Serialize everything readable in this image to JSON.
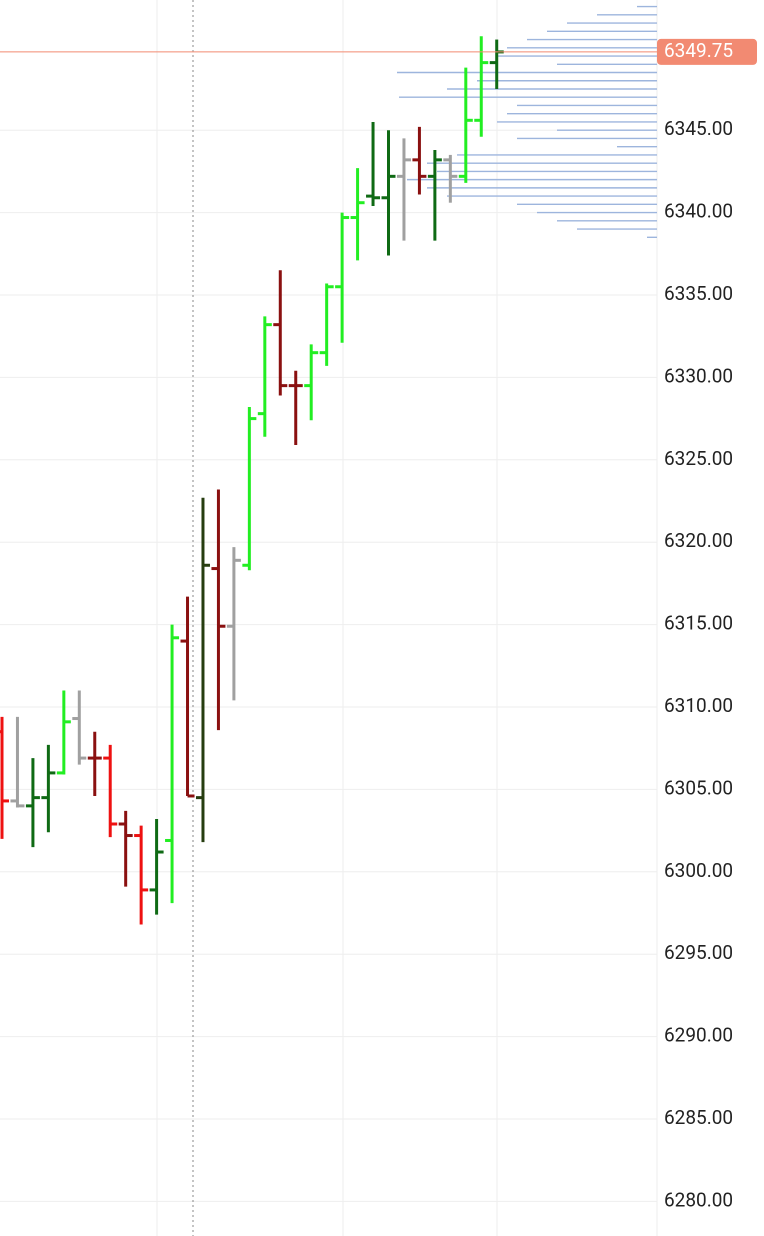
{
  "chart_data": {
    "type": "ohlc",
    "categories": [
      null,
      null,
      null,
      null,
      null,
      null,
      null,
      null,
      null,
      null,
      null,
      null,
      null,
      null,
      null,
      null,
      null,
      null,
      null,
      null,
      null,
      null,
      null,
      null,
      null,
      null,
      null,
      null,
      null,
      null,
      null,
      null,
      null
    ],
    "open": [
      6308.5,
      6304.3,
      6304.0,
      6304.5,
      6306.0,
      6309.3,
      6306.9,
      6306.9,
      6302.9,
      6302.2,
      6298.9,
      6301.9,
      6314.0,
      6304.5,
      6318.4,
      6314.9,
      6318.6,
      6327.8,
      6333.2,
      6329.5,
      6329.5,
      6331.5,
      6335.5,
      6339.7,
      6341.0,
      6340.9,
      6342.2,
      6343.2,
      6342.2,
      6343.2,
      6342.2,
      6345.6,
      6349.1
    ],
    "high": [
      6309.4,
      6309.4,
      6306.9,
      6307.7,
      6311.0,
      6311.0,
      6308.5,
      6307.7,
      6303.7,
      6302.8,
      6303.2,
      6315.0,
      6316.7,
      6322.7,
      6323.2,
      6319.7,
      6328.2,
      6333.7,
      6336.5,
      6330.4,
      6332.0,
      6335.7,
      6340.0,
      6342.7,
      6345.5,
      6345.0,
      6344.5,
      6345.2,
      6343.8,
      6343.5,
      6348.8,
      6350.7,
      6350.5
    ],
    "low": [
      6302.0,
      6303.9,
      6301.5,
      6302.4,
      6305.9,
      6306.5,
      6304.6,
      6302.1,
      6299.1,
      6296.8,
      6297.4,
      6298.1,
      6304.6,
      6301.8,
      6308.6,
      6310.4,
      6318.3,
      6326.4,
      6328.9,
      6325.9,
      6327.4,
      6330.7,
      6332.1,
      6337.1,
      6340.4,
      6337.4,
      6338.3,
      6341.1,
      6338.3,
      6340.6,
      6341.8,
      6344.6,
      6347.5
    ],
    "close": [
      6304.3,
      6304.0,
      6304.5,
      6306.0,
      6309.1,
      6306.9,
      6306.9,
      6302.9,
      6302.2,
      6298.9,
      6301.2,
      6314.2,
      6304.6,
      6318.6,
      6314.9,
      6318.9,
      6327.5,
      6333.2,
      6329.5,
      6329.5,
      6331.5,
      6335.5,
      6339.7,
      6340.6,
      6340.9,
      6342.2,
      6343.2,
      6342.2,
      6343.2,
      6342.2,
      6345.6,
      6349.1,
      6349.75
    ],
    "colors": [
      "#ee1111",
      "#a0a0a0",
      "#0f6a14",
      "#0f6a14",
      "#22ee22",
      "#a0a0a0",
      "#8a1010",
      "#ee1111",
      "#8a1010",
      "#ee1111",
      "#0f6a14",
      "#22ee22",
      "#8a1010",
      "#263d10",
      "#8a1010",
      "#a0a0a0",
      "#22ee22",
      "#22ee22",
      "#8a1010",
      "#8a1010",
      "#22ee22",
      "#22ee22",
      "#22ee22",
      "#22ee22",
      "#0f6a14",
      "#0f6a14",
      "#a0a0a0",
      "#8a1010",
      "#0f6a14",
      "#a0a0a0",
      "#22ee22",
      "#22ee22",
      "#0f6a14"
    ],
    "ylim": [
      6277.9,
      6352.9
    ],
    "yticks": [
      {
        "value": 6280,
        "label": "6280.00"
      },
      {
        "value": 6285,
        "label": "6285.00"
      },
      {
        "value": 6290,
        "label": "6290.00"
      },
      {
        "value": 6295,
        "label": "6295.00"
      },
      {
        "value": 6300,
        "label": "6300.00"
      },
      {
        "value": 6305,
        "label": "6305.00"
      },
      {
        "value": 6310,
        "label": "6310.00"
      },
      {
        "value": 6315,
        "label": "6315.00"
      },
      {
        "value": 6320,
        "label": "6320.00"
      },
      {
        "value": 6325,
        "label": "6325.00"
      },
      {
        "value": 6330,
        "label": "6330.00"
      },
      {
        "value": 6335,
        "label": "6335.00"
      },
      {
        "value": 6340,
        "label": "6340.00"
      },
      {
        "value": 6345,
        "label": "6345.00"
      }
    ],
    "grid": true,
    "last_price": 6349.75,
    "last_price_color": "#f28a72",
    "volume_profile": {
      "color": "#9db5dd",
      "prices": [
        6352.5,
        6352,
        6351.5,
        6351,
        6350.5,
        6350,
        6349.5,
        6349,
        6348.5,
        6348,
        6347.5,
        6347,
        6346.5,
        6346,
        6345.5,
        6345,
        6344.5,
        6344,
        6343.5,
        6343,
        6342.5,
        6342,
        6341.5,
        6341,
        6340.5,
        6340,
        6339.5,
        6339,
        6338.5
      ],
      "values": [
        20,
        60,
        90,
        110,
        130,
        150,
        160,
        100,
        260,
        180,
        210,
        258,
        140,
        150,
        160,
        100,
        140,
        40,
        200,
        230,
        220,
        250,
        230,
        210,
        140,
        120,
        100,
        80,
        10
      ]
    }
  }
}
